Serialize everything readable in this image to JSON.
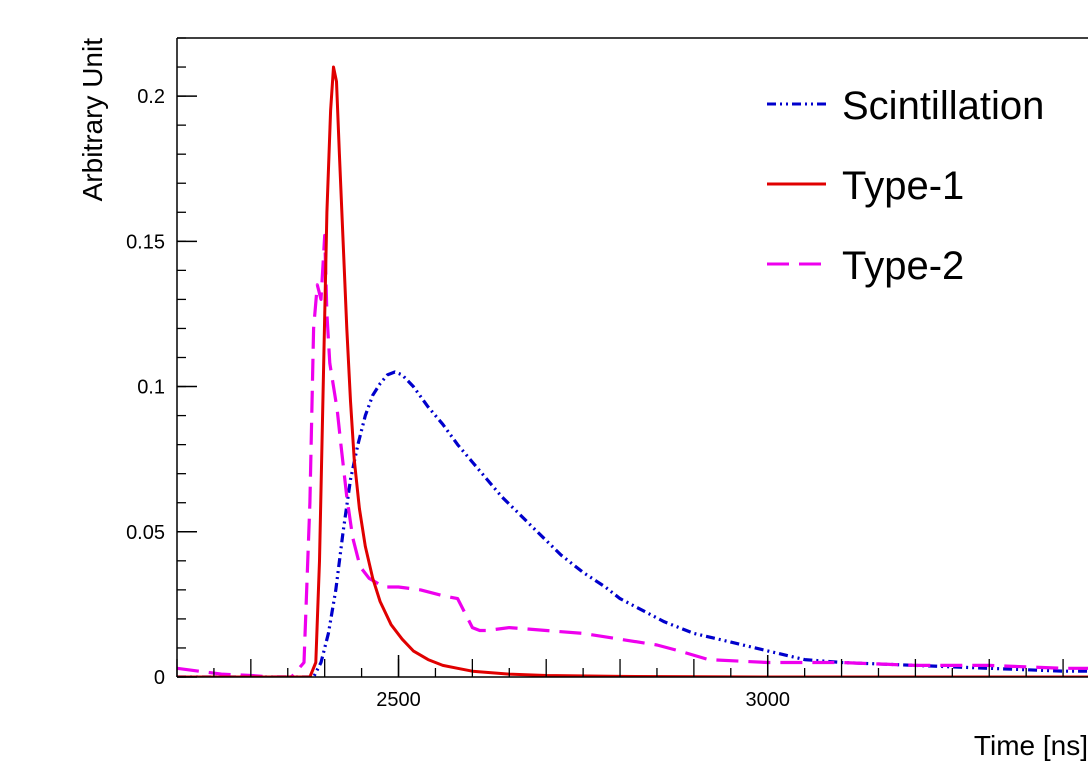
{
  "chart_data": {
    "type": "line",
    "title": "",
    "xlabel": "Time [ns]",
    "ylabel": "Arbitrary Unit",
    "xlim": [
      2200,
      3450
    ],
    "ylim": [
      0,
      0.22
    ],
    "x_ticks": [
      {
        "value": 2500,
        "label": "2500"
      },
      {
        "value": 3000,
        "label": "3000"
      }
    ],
    "y_ticks": [
      {
        "value": 0,
        "label": "0"
      },
      {
        "value": 0.05,
        "label": "0.05"
      },
      {
        "value": 0.1,
        "label": "0.1"
      },
      {
        "value": 0.15,
        "label": "0.15"
      },
      {
        "value": 0.2,
        "label": "0.2"
      }
    ],
    "x_minor_step": 50,
    "y_minor_step": 0.01,
    "grid": false,
    "legend_position": "top-right",
    "series": [
      {
        "name": "Scintillation",
        "color": "#0000cc",
        "style": "dash-dot-dot",
        "x": [
          2200,
          2300,
          2370,
          2385,
          2395,
          2405,
          2415,
          2425,
          2435,
          2445,
          2455,
          2465,
          2475,
          2485,
          2495,
          2505,
          2520,
          2540,
          2560,
          2580,
          2600,
          2620,
          2640,
          2660,
          2680,
          2700,
          2720,
          2750,
          2780,
          2800,
          2830,
          2860,
          2900,
          2950,
          3000,
          3050,
          3100,
          3200,
          3300,
          3400,
          3450
        ],
        "values": [
          0.0,
          0.0,
          0.0,
          0.0,
          0.005,
          0.015,
          0.03,
          0.05,
          0.068,
          0.08,
          0.09,
          0.097,
          0.101,
          0.104,
          0.105,
          0.104,
          0.1,
          0.093,
          0.087,
          0.08,
          0.074,
          0.068,
          0.062,
          0.057,
          0.052,
          0.047,
          0.042,
          0.036,
          0.031,
          0.027,
          0.023,
          0.019,
          0.015,
          0.012,
          0.009,
          0.006,
          0.005,
          0.004,
          0.003,
          0.002,
          0.002
        ]
      },
      {
        "name": "Type-1",
        "color": "#e00000",
        "style": "solid",
        "x": [
          2200,
          2300,
          2380,
          2388,
          2393,
          2398,
          2403,
          2408,
          2412,
          2416,
          2420,
          2425,
          2430,
          2435,
          2440,
          2447,
          2455,
          2465,
          2475,
          2490,
          2505,
          2520,
          2540,
          2560,
          2580,
          2600,
          2650,
          2700,
          2800,
          3000,
          3200,
          3450
        ],
        "values": [
          0.0,
          0.0,
          0.0,
          0.005,
          0.04,
          0.1,
          0.16,
          0.195,
          0.21,
          0.205,
          0.18,
          0.15,
          0.12,
          0.095,
          0.075,
          0.058,
          0.045,
          0.034,
          0.026,
          0.018,
          0.013,
          0.009,
          0.006,
          0.004,
          0.003,
          0.002,
          0.001,
          0.0005,
          0.0002,
          0.0,
          0.0,
          0.0
        ]
      },
      {
        "name": "Type-2",
        "color": "#ee00ee",
        "style": "dashed",
        "x": [
          2200,
          2230,
          2260,
          2300,
          2330,
          2355,
          2372,
          2380,
          2385,
          2390,
          2395,
          2400,
          2403,
          2407,
          2412,
          2417,
          2422,
          2430,
          2438,
          2448,
          2460,
          2480,
          2500,
          2530,
          2560,
          2580,
          2590,
          2600,
          2610,
          2620,
          2650,
          2700,
          2750,
          2800,
          2850,
          2880,
          2920,
          3000,
          3100,
          3200,
          3300,
          3400,
          3450
        ],
        "values": [
          0.003,
          0.002,
          0.001,
          0.0005,
          0.0,
          0.0,
          0.005,
          0.06,
          0.12,
          0.135,
          0.13,
          0.152,
          0.125,
          0.108,
          0.1,
          0.092,
          0.08,
          0.062,
          0.048,
          0.038,
          0.034,
          0.031,
          0.031,
          0.03,
          0.028,
          0.027,
          0.022,
          0.017,
          0.016,
          0.016,
          0.017,
          0.016,
          0.015,
          0.013,
          0.011,
          0.009,
          0.006,
          0.005,
          0.005,
          0.004,
          0.004,
          0.003,
          0.003
        ]
      }
    ]
  }
}
